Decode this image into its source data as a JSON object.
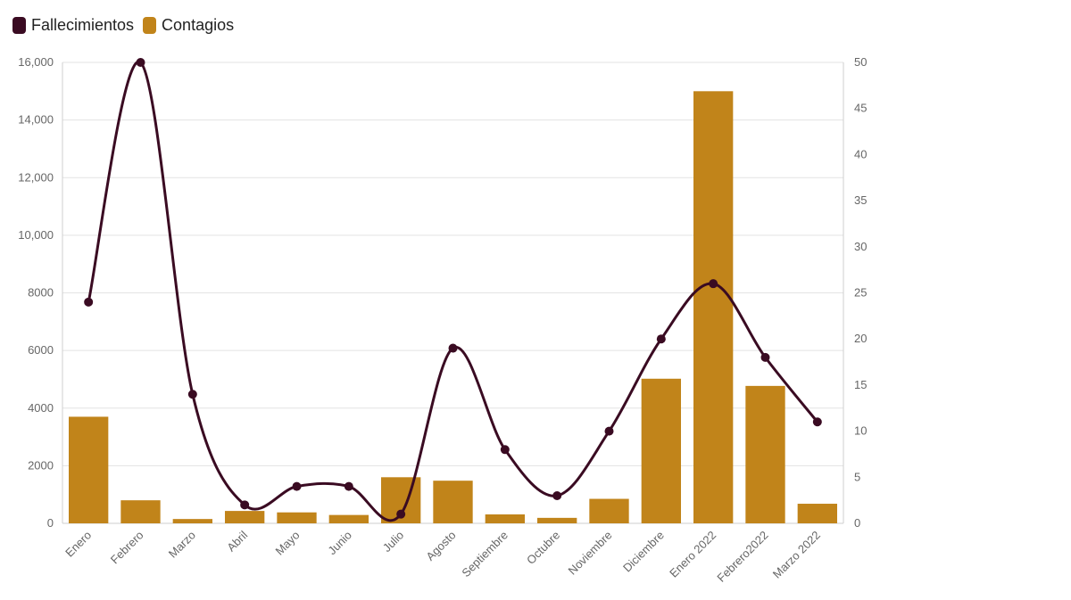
{
  "legend": {
    "fallecimientos": {
      "label": "Fallecimientos",
      "color": "#3a0b22"
    },
    "contagios": {
      "label": "Contagios",
      "color": "#c1841a"
    }
  },
  "chart_data": {
    "type": "bar",
    "categories": [
      "Enero",
      "Febrero",
      "Marzo",
      "Abril",
      "Mayo",
      "Junio",
      "Julio",
      "Agosto",
      "Septiembre",
      "Octubre",
      "Noviembre",
      "Diciembre",
      "Enero 2022",
      "Febrero2022",
      "Marzo 2022"
    ],
    "series": [
      {
        "name": "Contagios",
        "type": "bar",
        "axis": "left",
        "color": "#c1841a",
        "values": [
          3700,
          800,
          150,
          430,
          380,
          290,
          1600,
          1480,
          310,
          190,
          850,
          5020,
          15000,
          4770,
          680
        ]
      },
      {
        "name": "Fallecimientos",
        "type": "line",
        "axis": "right",
        "color": "#3a0b22",
        "values": [
          24,
          50,
          14,
          2,
          4,
          4,
          1,
          19,
          8,
          3,
          10,
          20,
          26,
          18,
          11
        ]
      }
    ],
    "y_left": {
      "min": 0,
      "max": 16000,
      "ticks": [
        0,
        2000,
        4000,
        6000,
        8000,
        10000,
        12000,
        14000,
        16000
      ],
      "tick_labels": [
        "0",
        "2000",
        "4000",
        "6000",
        "8000",
        "10,000",
        "12,000",
        "14,000",
        "16,000"
      ]
    },
    "y_right": {
      "min": 0,
      "max": 50,
      "ticks": [
        0,
        5,
        10,
        15,
        20,
        25,
        30,
        35,
        40,
        45,
        50
      ],
      "tick_labels": [
        "0",
        "5",
        "10",
        "15",
        "20",
        "25",
        "30",
        "35",
        "40",
        "45",
        "50"
      ]
    },
    "grid": true,
    "legend_position": "top-left"
  }
}
